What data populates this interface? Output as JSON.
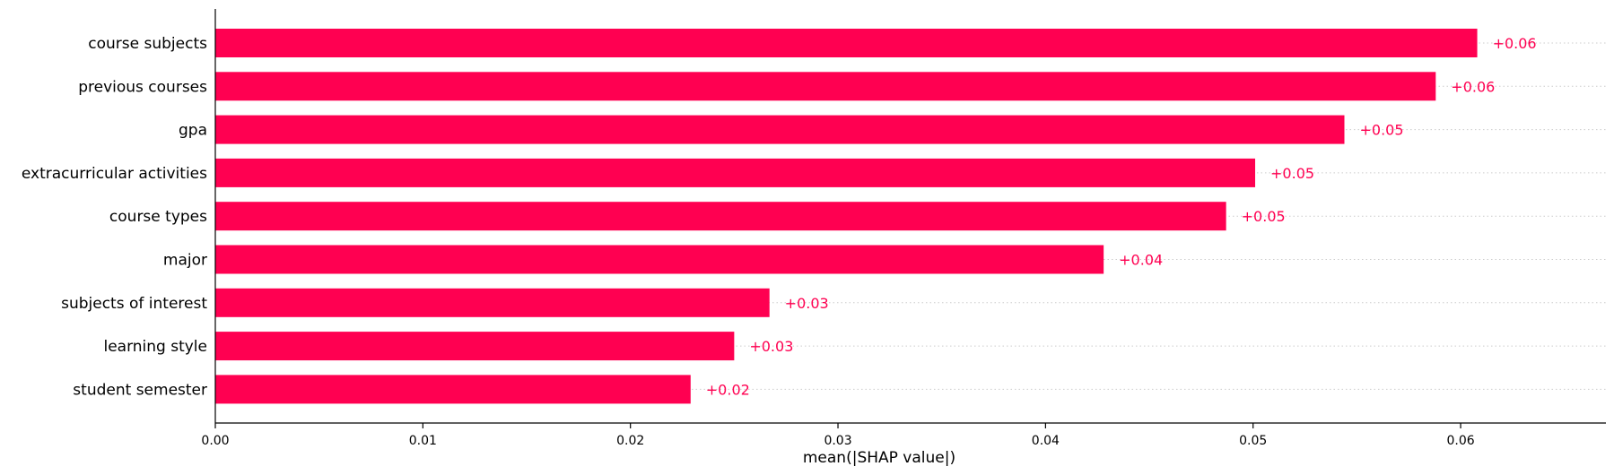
{
  "chart_data": {
    "type": "bar",
    "orientation": "horizontal",
    "categories": [
      "course subjects",
      "previous courses",
      "gpa",
      "extracurricular activities",
      "course types",
      "major",
      "subjects of interest",
      "learning style",
      "student semester"
    ],
    "values": [
      0.0608,
      0.0588,
      0.0544,
      0.0501,
      0.0487,
      0.0428,
      0.0267,
      0.025,
      0.0229
    ],
    "value_labels": [
      "+0.06",
      "+0.06",
      "+0.05",
      "+0.05",
      "+0.05",
      "+0.04",
      "+0.03",
      "+0.03",
      "+0.02"
    ],
    "title": "",
    "xlabel": "mean(|SHAP value|)",
    "ylabel": "",
    "xlim": [
      0,
      0.067
    ],
    "x_ticks": [
      0.0,
      0.01,
      0.02,
      0.03,
      0.04,
      0.05,
      0.06
    ],
    "x_tick_labels": [
      "0.00",
      "0.01",
      "0.02",
      "0.03",
      "0.04",
      "0.05",
      "0.06"
    ],
    "grid": "dotted horizontal guide lines per row",
    "legend": "none",
    "bar_color": "#ff0051",
    "label_color": "#ff0051",
    "guide_color": "#cccccc"
  }
}
